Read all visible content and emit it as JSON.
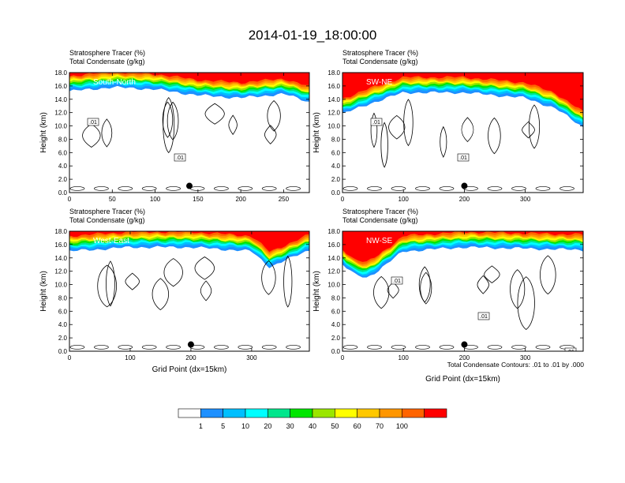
{
  "title": "2014-01-19_18:00:00",
  "footnote": "Total Condensate Contours: .01 to .01 by .000",
  "colorbar": {
    "labels": [
      "1",
      "5",
      "10",
      "20",
      "30",
      "40",
      "50",
      "60",
      "70",
      "100"
    ],
    "colors": [
      "#ffffff",
      "#1e90ff",
      "#00bfff",
      "#00ffff",
      "#00e68c",
      "#00e600",
      "#9ae600",
      "#ffff00",
      "#ffc800",
      "#ff9600",
      "#ff6400",
      "#ff0000"
    ]
  },
  "chart_data": [
    {
      "type": "heatmap",
      "title": "Stratosphere Tracer   (%)",
      "subtitle": "Total Condensate   (g/kg)",
      "panel_label": "South-North",
      "ylabel": "Height (km)",
      "xlabel": "",
      "xlim": [
        0,
        280
      ],
      "ylim": [
        0,
        18
      ],
      "xticks": [
        0,
        50,
        100,
        150,
        200,
        250
      ],
      "yticks": [
        "0.0",
        "2.0",
        "4.0",
        "6.0",
        "8.0",
        "10.0",
        "12.0",
        "14.0",
        "16.0",
        "18.0"
      ],
      "contour_labels": [
        ".01",
        ".01"
      ],
      "marker": {
        "x": 140,
        "y": 1.0
      },
      "tropopause": {
        "x": [
          0,
          50,
          100,
          150,
          200,
          250,
          280
        ],
        "y": [
          15.2,
          15.8,
          15.5,
          14.6,
          14.2,
          14.8,
          13.6
        ]
      }
    },
    {
      "type": "heatmap",
      "title": "Stratosphere Tracer   (%)",
      "subtitle": "Total Condensate   (g/kg)",
      "panel_label": "SW-NE",
      "ylabel": "Height (km)",
      "xlabel": "",
      "xlim": [
        0,
        395
      ],
      "ylim": [
        0,
        18
      ],
      "xticks": [
        0,
        100,
        200,
        300
      ],
      "yticks": [
        "0.0",
        "2.0",
        "4.0",
        "6.0",
        "8.0",
        "10.0",
        "12.0",
        "14.0",
        "16.0",
        "18.0"
      ],
      "contour_labels": [
        ".01",
        ".01"
      ],
      "marker": {
        "x": 200,
        "y": 1.0
      },
      "tropopause": {
        "x": [
          0,
          50,
          100,
          200,
          300,
          350,
          395
        ],
        "y": [
          11.8,
          13.5,
          15.0,
          15.0,
          14.2,
          12.6,
          9.8
        ]
      }
    },
    {
      "type": "heatmap",
      "title": "Stratosphere Tracer   (%)",
      "subtitle": "Total Condensate   (g/kg)",
      "panel_label": "West-East",
      "ylabel": "Height (km)",
      "xlabel": "Grid Point (dx=15km)",
      "xlim": [
        0,
        395
      ],
      "ylim": [
        0,
        18
      ],
      "xticks": [
        0,
        100,
        200,
        300
      ],
      "yticks": [
        "0.0",
        "2.0",
        "4.0",
        "6.0",
        "8.0",
        "10.0",
        "12.0",
        "14.0",
        "16.0",
        "18.0"
      ],
      "contour_labels": [],
      "marker": {
        "x": 200,
        "y": 1.0
      },
      "tropopause": {
        "x": [
          0,
          100,
          200,
          300,
          330,
          360,
          395
        ],
        "y": [
          15.0,
          15.6,
          15.6,
          15.0,
          12.6,
          13.8,
          15.2
        ]
      }
    },
    {
      "type": "heatmap",
      "title": "Stratosphere Tracer   (%)",
      "subtitle": "Total Condensate   (g/kg)",
      "panel_label": "NW-SE",
      "ylabel": "Height (km)",
      "xlabel": "Grid Point (dx=15km)",
      "xlim": [
        0,
        395
      ],
      "ylim": [
        0,
        18
      ],
      "xticks": [
        0,
        100,
        200,
        300
      ],
      "yticks": [
        "0.0",
        "2.0",
        "4.0",
        "6.0",
        "8.0",
        "10.0",
        "12.0",
        "14.0",
        "16.0",
        "18.0"
      ],
      "contour_labels": [
        ".01",
        ".01",
        ".01"
      ],
      "marker": {
        "x": 200,
        "y": 1.0
      },
      "tropopause": {
        "x": [
          0,
          20,
          40,
          60,
          100,
          200,
          300,
          395
        ],
        "y": [
          13.0,
          11.5,
          11.0,
          12.2,
          15.0,
          15.6,
          15.4,
          15.2
        ]
      }
    }
  ]
}
